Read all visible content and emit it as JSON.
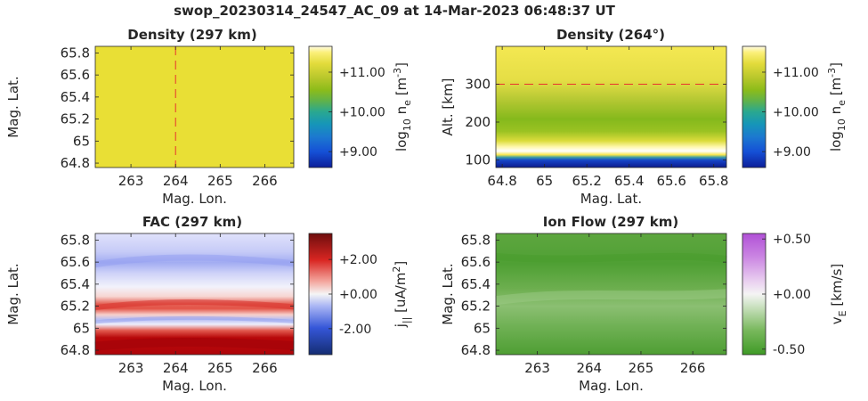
{
  "figure_title": "swop_20230314_24547_AC_09 at 14-Mar-2023 06:48:37 UT",
  "chart_data": [
    {
      "type": "heatmap",
      "title": "Density (297 km)",
      "xlabel": "Mag. Lon.",
      "ylabel": "Mag. Lat.",
      "xlim": [
        262.2,
        266.65
      ],
      "ylim": [
        64.76,
        65.86
      ],
      "xticks": [
        263,
        264,
        265,
        266
      ],
      "yticks": [
        64.8,
        65,
        65.2,
        65.4,
        65.6,
        65.8
      ],
      "ytick_labels": [
        "64.8",
        "65",
        "65.2",
        "65.4",
        "65.6",
        "65.8"
      ],
      "field": "uniform log10 density ≈ 11.3",
      "value_approx": 11.3,
      "cut_line": {
        "axis": "x",
        "value": 264,
        "color": "#e8322d",
        "style": "dashed"
      },
      "colorbar": {
        "label": "log10 ne [m-3]",
        "ticks": [
          "+9.00",
          "+10.00",
          "+11.00"
        ],
        "tick_values": [
          9,
          10,
          11
        ],
        "range": [
          8.6,
          11.65
        ],
        "colormap": "parula-like"
      }
    },
    {
      "type": "heatmap",
      "title": "Density (264°)",
      "xlabel": "Mag. Lat.",
      "ylabel": "Alt. [km]",
      "xlim": [
        64.77,
        65.86
      ],
      "ylim": [
        80,
        400
      ],
      "xticks": [
        64.8,
        65,
        65.2,
        65.4,
        65.6,
        65.8
      ],
      "xtick_labels": [
        "64.8",
        "65",
        "65.2",
        "65.4",
        "65.6",
        "65.8"
      ],
      "yticks": [
        100,
        200,
        300
      ],
      "field": "altitude profile: low (<100 km) ≈ 8.7, peak ≈ 11.8 near 120 km, minimum ≈ 10.1 near 200 km, ≈ 11.3 above 300 km",
      "cut_line": {
        "axis": "y",
        "value": 300,
        "color": "#e8322d",
        "style": "dashed"
      },
      "colorbar": {
        "label": "log10 ne [m-3]",
        "ticks": [
          "+9.00",
          "+10.00",
          "+11.00"
        ],
        "tick_values": [
          9,
          10,
          11
        ],
        "range": [
          8.6,
          11.65
        ],
        "colormap": "parula-like"
      }
    },
    {
      "type": "heatmap",
      "title": "FAC (297 km)",
      "xlabel": "Mag. Lon.",
      "ylabel": "Mag. Lat.",
      "xlim": [
        262.2,
        266.65
      ],
      "ylim": [
        64.76,
        65.86
      ],
      "xticks": [
        263,
        264,
        265,
        266
      ],
      "yticks": [
        64.8,
        65,
        65.2,
        65.4,
        65.6,
        65.8
      ],
      "ytick_labels": [
        "64.8",
        "65",
        "65.2",
        "65.4",
        "65.6",
        "65.8"
      ],
      "field": "latitudinal bands: strong upward (+) current 64.76–64.95, weak negative near 65.08, positive band near 65.22, negative band near 65.62",
      "colorbar": {
        "label": "j|| [uA/m2]",
        "ticks": [
          "-2.00",
          "+0.00",
          "+2.00"
        ],
        "tick_values": [
          -2,
          0,
          2
        ],
        "range": [
          -3.5,
          3.5
        ],
        "colormap": "red-blue diverging"
      }
    },
    {
      "type": "heatmap",
      "title": "Ion Flow (297 km)",
      "xlabel": "Mag. Lon.",
      "ylabel": "Mag. Lat.",
      "xlim": [
        262.2,
        266.65
      ],
      "ylim": [
        64.76,
        65.86
      ],
      "xticks": [
        263,
        264,
        265,
        266
      ],
      "yticks": [
        64.8,
        65,
        65.2,
        65.4,
        65.6,
        65.8
      ],
      "ytick_labels": [
        "64.8",
        "65",
        "65.2",
        "65.4",
        "65.6",
        "65.8"
      ],
      "field": "uniformly negative flow ≈ -0.4 km/s with weaker band near 65.3",
      "colorbar": {
        "label": "vE [km/s]",
        "ticks": [
          "-0.50",
          "+0.00",
          "+0.50"
        ],
        "tick_values": [
          -0.5,
          0,
          0.5
        ],
        "range": [
          -0.55,
          0.55
        ],
        "colormap": "green-purple diverging"
      }
    }
  ]
}
